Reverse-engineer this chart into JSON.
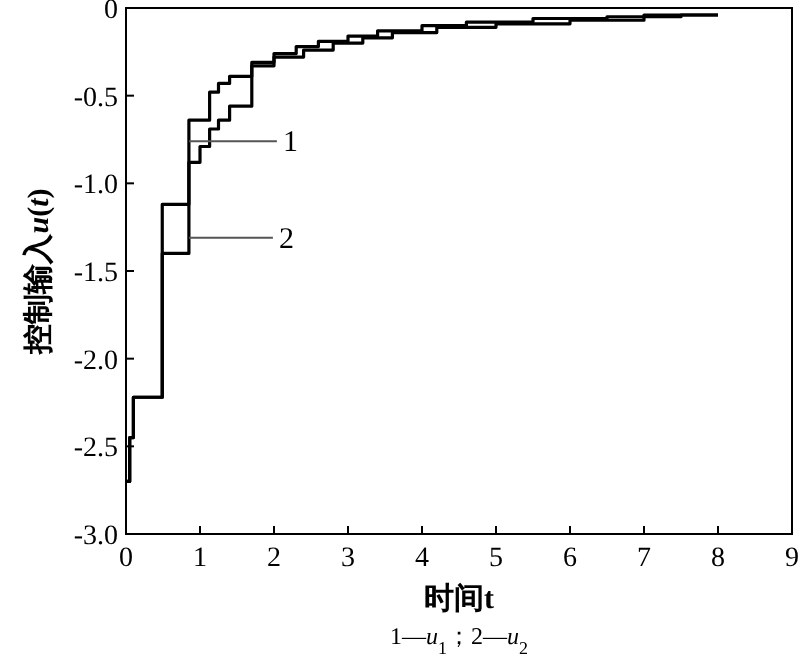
{
  "chart_data": {
    "type": "step",
    "xlabel": "时间t",
    "ylabel": "控制输入**u**(*t*)",
    "xlim": [
      0,
      9
    ],
    "ylim": [
      -3.0,
      0
    ],
    "xticks": [
      0,
      1,
      2,
      3,
      4,
      5,
      6,
      7,
      8,
      9
    ],
    "yticks": [
      {
        "value": -3.0,
        "label": "-3.0"
      },
      {
        "value": -2.5,
        "label": "-2.5"
      },
      {
        "value": -2.0,
        "label": "-2.0"
      },
      {
        "value": -1.5,
        "label": "-1.5"
      },
      {
        "value": -1.0,
        "label": "-1.0"
      },
      {
        "value": -0.5,
        "label": "-0.5"
      },
      0
    ],
    "series": [
      {
        "color": "#000000",
        "x": [
          0,
          0.05,
          0.1,
          0.49,
          0.85,
          1.13,
          1.25,
          1.4,
          1.7,
          2.0,
          2.3,
          2.6,
          3.0,
          3.4,
          4.0,
          4.6,
          5.5,
          6.5,
          7.0,
          8.0
        ],
        "values": [
          -2.7,
          -2.45,
          -2.22,
          -1.12,
          -0.64,
          -0.48,
          -0.43,
          -0.39,
          -0.31,
          -0.26,
          -0.22,
          -0.19,
          -0.16,
          -0.13,
          -0.1,
          -0.08,
          -0.06,
          -0.05,
          -0.04,
          -0.04
        ]
      },
      {
        "color": "#000000",
        "x": [
          0,
          0.05,
          0.1,
          0.49,
          0.85,
          1.0,
          1.13,
          1.25,
          1.4,
          1.7,
          2.0,
          2.4,
          2.8,
          3.2,
          3.6,
          4.2,
          5.0,
          6.0,
          7.0,
          7.5,
          8.0
        ],
        "values": [
          -2.7,
          -2.45,
          -2.22,
          -1.4,
          -0.88,
          -0.79,
          -0.69,
          -0.64,
          -0.56,
          -0.33,
          -0.28,
          -0.24,
          -0.2,
          -0.17,
          -0.14,
          -0.11,
          -0.09,
          -0.07,
          -0.05,
          -0.04,
          -0.04
        ]
      }
    ],
    "annotations": [
      {
        "text": "1",
        "x": 0.85,
        "y": -0.76
      },
      {
        "text": "2",
        "x": 0.85,
        "y": -1.31
      },
      "1—*u*$_{1}$；2—*u*$_{2}$"
    ]
  }
}
